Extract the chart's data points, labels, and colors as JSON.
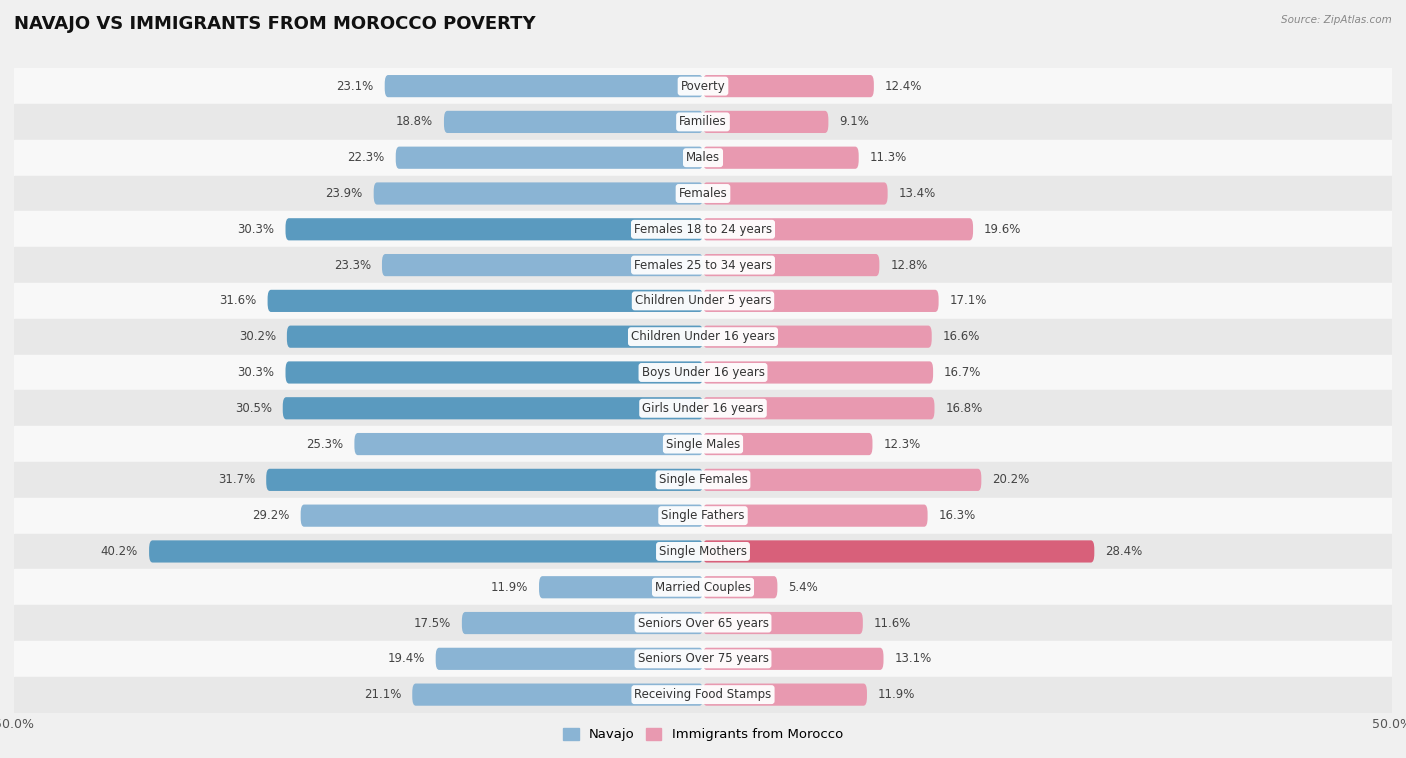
{
  "title": "NAVAJO VS IMMIGRANTS FROM MOROCCO POVERTY",
  "source": "Source: ZipAtlas.com",
  "categories": [
    "Poverty",
    "Families",
    "Males",
    "Females",
    "Females 18 to 24 years",
    "Females 25 to 34 years",
    "Children Under 5 years",
    "Children Under 16 years",
    "Boys Under 16 years",
    "Girls Under 16 years",
    "Single Males",
    "Single Females",
    "Single Fathers",
    "Single Mothers",
    "Married Couples",
    "Seniors Over 65 years",
    "Seniors Over 75 years",
    "Receiving Food Stamps"
  ],
  "navajo_values": [
    23.1,
    18.8,
    22.3,
    23.9,
    30.3,
    23.3,
    31.6,
    30.2,
    30.3,
    30.5,
    25.3,
    31.7,
    29.2,
    40.2,
    11.9,
    17.5,
    19.4,
    21.1
  ],
  "morocco_values": [
    12.4,
    9.1,
    11.3,
    13.4,
    19.6,
    12.8,
    17.1,
    16.6,
    16.7,
    16.8,
    12.3,
    20.2,
    16.3,
    28.4,
    5.4,
    11.6,
    13.1,
    11.9
  ],
  "navajo_color": "#8ab4d4",
  "morocco_color": "#e899b0",
  "navajo_highlight_color": "#5a9abf",
  "morocco_highlight_color": "#d8607a",
  "highlight_navajo": [
    4,
    6,
    7,
    8,
    9,
    11,
    13
  ],
  "highlight_morocco": [
    13
  ],
  "axis_max": 50.0,
  "bar_height": 0.62,
  "background_color": "#f0f0f0",
  "row_color_light": "#f8f8f8",
  "row_color_dark": "#e8e8e8",
  "legend_navajo": "Navajo",
  "legend_morocco": "Immigrants from Morocco",
  "title_fontsize": 13,
  "label_fontsize": 8.5,
  "value_fontsize": 8.5,
  "axis_fontsize": 9
}
